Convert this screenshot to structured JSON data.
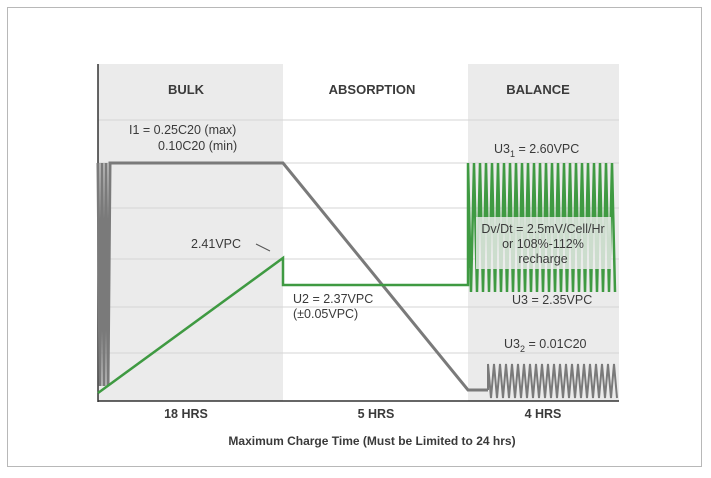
{
  "phases": [
    {
      "name": "BULK",
      "duration": "18 HRS"
    },
    {
      "name": "ABSORPTION",
      "duration": "5 HRS"
    },
    {
      "name": "BALANCE",
      "duration": "4 HRS"
    }
  ],
  "caption": "Maximum Charge Time (Must be Limited to 24 hrs)",
  "annotations": {
    "i1_line1": "I1 = 0.25C20 (max)",
    "i1_line2": "0.10C20 (min)",
    "v_241": "2.41VPC",
    "u2_line1": "U2 = 2.37VPC",
    "u2_line2": "(±0.05VPC)",
    "u3_1_base": "U3",
    "u3_1_sub": "1",
    "u3_1_value": " = 2.60VPC",
    "dvdt_line1": "Dv/Dt = 2.5mV/Cell/Hr",
    "dvdt_line2": "or 108%-112%",
    "dvdt_line3": "recharge",
    "u3_low": "U3 = 2.35VPC",
    "u3_2_base": "U3",
    "u3_2_sub": "2",
    "u3_2_value": " = 0.01C20"
  },
  "colors": {
    "voltage": "#3f9a42",
    "current": "#7a7a7a",
    "shade": "#ebebeb",
    "grid": "#d6d6d6"
  }
}
